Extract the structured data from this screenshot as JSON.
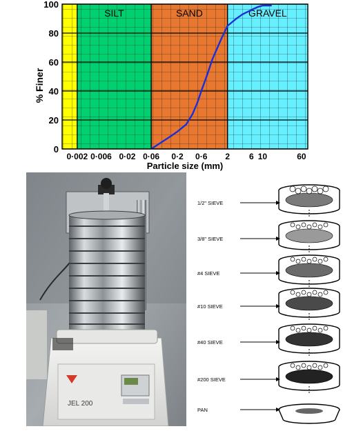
{
  "chart_data": {
    "type": "line",
    "xscale": "log",
    "xlim": [
      0.001,
      80
    ],
    "ylim": [
      0,
      100
    ],
    "ylabel": "% Finer",
    "xlabel": "Particle size (mm)",
    "yticks": [
      0,
      20,
      40,
      60,
      80,
      100
    ],
    "xticks": [
      {
        "value": 0.002,
        "label": "0·002"
      },
      {
        "value": 0.006,
        "label": "0·006"
      },
      {
        "value": 0.02,
        "label": "0·02"
      },
      {
        "value": 0.06,
        "label": "0·06"
      },
      {
        "value": 0.2,
        "label": "0·2"
      },
      {
        "value": 0.6,
        "label": "0·6"
      },
      {
        "value": 2,
        "label": "2"
      },
      {
        "value": 6,
        "label": "6"
      },
      {
        "value": 10,
        "label": "10"
      },
      {
        "value": 60,
        "label": "60"
      }
    ],
    "zones": [
      {
        "label": "",
        "from": 0.001,
        "to": 0.002,
        "color": "#ffff00"
      },
      {
        "label": "SILT",
        "from": 0.002,
        "to": 0.06,
        "color": "#00d070"
      },
      {
        "label": "SAND",
        "from": 0.06,
        "to": 2,
        "color": "#e87830"
      },
      {
        "label": "GRAVEL",
        "from": 2,
        "to": 80,
        "color": "#66f0ff"
      }
    ],
    "grid": true,
    "series": [
      {
        "color": "#1a2fd8",
        "x": [
          0.06,
          0.1,
          0.15,
          0.2,
          0.3,
          0.4,
          0.5,
          0.6,
          0.8,
          1.0,
          1.5,
          2.0,
          3,
          4,
          6,
          8,
          10,
          15
        ],
        "y": [
          0,
          5,
          9,
          12,
          17,
          24,
          32,
          40,
          52,
          62,
          76,
          85,
          90,
          93,
          96,
          98,
          99,
          99
        ]
      }
    ]
  },
  "photo": {
    "panel_label": "JEL 200"
  },
  "sieve_diagram": {
    "labels": [
      "1/2\" SIEVE",
      "3/8\" SIEVE",
      "#4 SIEVE",
      "#10 SIEVE",
      "#40 SIEVE",
      "#200 SIEVE",
      "PAN"
    ]
  }
}
